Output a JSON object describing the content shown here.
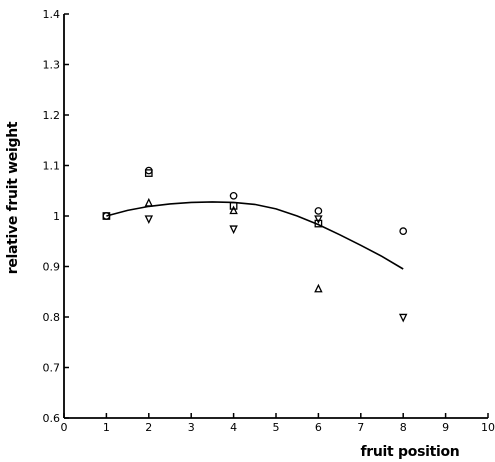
{
  "chart_data": {
    "type": "scatter",
    "title": "",
    "xlabel": "fruit position",
    "ylabel": "relative fruit weight",
    "xlim": [
      0,
      10
    ],
    "ylim": [
      0.6,
      1.4
    ],
    "x_ticks": [
      0,
      1,
      2,
      3,
      4,
      5,
      6,
      7,
      8,
      9,
      10
    ],
    "y_ticks": [
      0.6,
      0.7,
      0.8,
      0.9,
      1.0,
      1.1,
      1.2,
      1.3,
      1.4
    ],
    "x_tick_labels": [
      "0",
      "1",
      "2",
      "3",
      "4",
      "5",
      "6",
      "7",
      "8",
      "9",
      "10"
    ],
    "y_tick_labels": [
      "0.6",
      "0.7",
      "0.8",
      "0.9",
      "1",
      "1.1",
      "1.2",
      "1.3",
      "1.4"
    ],
    "grid": false,
    "colors": {
      "marker": "#000000",
      "line": "#000000"
    },
    "series": [
      {
        "marker": "circle",
        "points": [
          [
            1,
            1.0
          ],
          [
            2,
            1.09
          ],
          [
            4,
            1.04
          ],
          [
            6,
            1.01
          ],
          [
            8,
            0.97
          ]
        ]
      },
      {
        "marker": "square",
        "points": [
          [
            1,
            1.0
          ],
          [
            2,
            1.085
          ],
          [
            4,
            1.02
          ],
          [
            6,
            0.985
          ]
        ]
      },
      {
        "marker": "triangle-up",
        "points": [
          [
            2,
            1.025
          ],
          [
            4,
            1.01
          ],
          [
            6,
            0.855
          ]
        ]
      },
      {
        "marker": "triangle-down",
        "points": [
          [
            2,
            0.995
          ],
          [
            4,
            0.975
          ],
          [
            6,
            0.995
          ],
          [
            8,
            0.8
          ]
        ]
      }
    ],
    "fit_curve": {
      "type": "line",
      "x": [
        1,
        1.5,
        2,
        2.5,
        3,
        3.5,
        4,
        4.5,
        5,
        5.5,
        6,
        6.5,
        7,
        7.5,
        8
      ],
      "y": [
        1.0,
        1.011,
        1.019,
        1.024,
        1.027,
        1.028,
        1.027,
        1.023,
        1.014,
        1.0,
        0.983,
        0.963,
        0.942,
        0.92,
        0.895
      ]
    }
  }
}
